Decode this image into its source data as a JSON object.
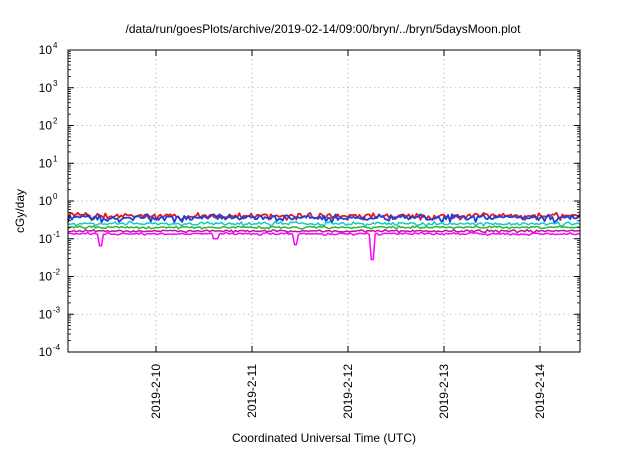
{
  "chart_data": {
    "type": "line",
    "title": "/data/run/goesPlots/archive/2019-02-14/09:00/bryn/../bryn/5daysMoon.plot",
    "xlabel": "Coordinated Universal Time (UTC)",
    "ylabel": "cGy/day",
    "yscale": "log",
    "ylim": [
      0.0001,
      10000
    ],
    "yticks": [
      {
        "base": "10",
        "exp": "-4"
      },
      {
        "base": "10",
        "exp": "-3"
      },
      {
        "base": "10",
        "exp": "-2"
      },
      {
        "base": "10",
        "exp": "-1"
      },
      {
        "base": "10",
        "exp": "0"
      },
      {
        "base": "10",
        "exp": "1"
      },
      {
        "base": "10",
        "exp": "2"
      },
      {
        "base": "10",
        "exp": "3"
      },
      {
        "base": "10",
        "exp": "4"
      }
    ],
    "xlim": [
      "2019-02-09 02:00",
      "2019-02-14 10:00"
    ],
    "xticks": [
      "2019-2-10",
      "2019-2-11",
      "2019-2-12",
      "2019-2-13",
      "2019-2-14"
    ],
    "grid": true,
    "series": [
      {
        "color": "#e31a1c",
        "base": 0.4,
        "amp": 0.09,
        "spikes": []
      },
      {
        "color": "#1f3fd9",
        "base": 0.36,
        "amp": 0.09,
        "spikes": []
      },
      {
        "color": "#17c9c9",
        "base": 0.25,
        "amp": 0.035,
        "spikes": []
      },
      {
        "color": "#2eb82e",
        "base": 0.2,
        "amp": 0.02,
        "spikes": []
      },
      {
        "color": "#b5179e",
        "base": 0.16,
        "amp": 0.015,
        "spikes": []
      },
      {
        "color": "#ff00ff",
        "base": 0.135,
        "amp": 0.012,
        "spikes": [
          {
            "t": "2019-02-09 10:00",
            "v": 0.065
          },
          {
            "t": "2019-02-10 15:00",
            "v": 0.1
          },
          {
            "t": "2019-02-11 11:00",
            "v": 0.07
          },
          {
            "t": "2019-02-12 06:00",
            "v": 0.028
          }
        ]
      }
    ]
  }
}
